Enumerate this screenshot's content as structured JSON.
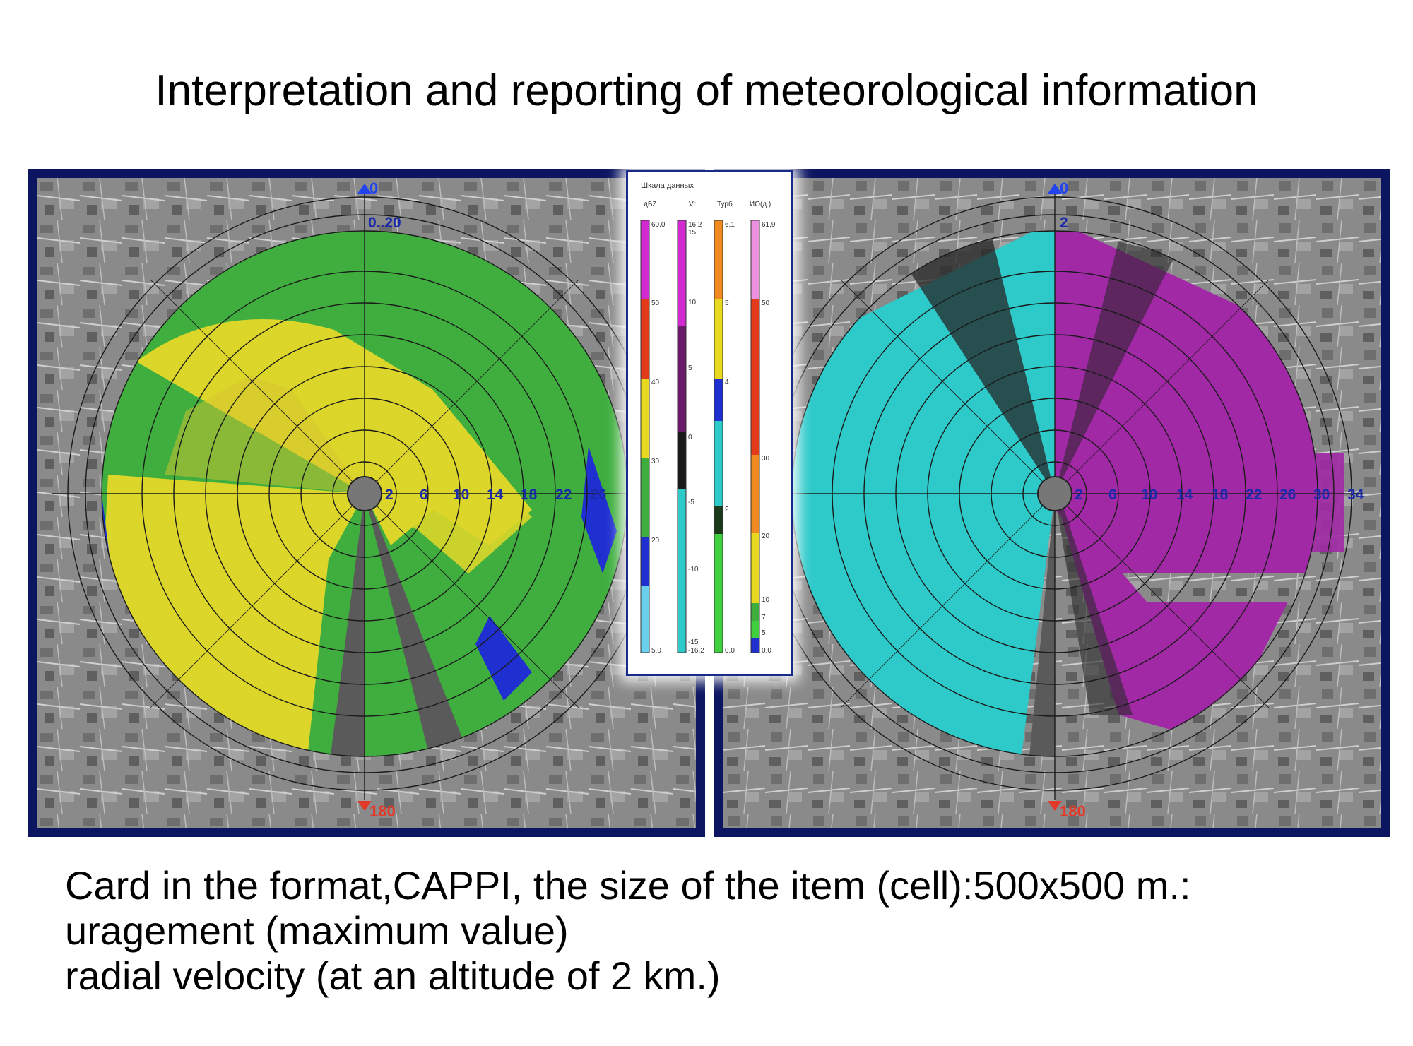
{
  "title": "Interpretation and reporting of meteorological information",
  "caption": {
    "line1": "Card in the format,CAPPI, the size of the item (cell):500x500 m.:",
    "line2": "uragement (maximum value)",
    "line3": "radial velocity (at an altitude of 2 km.)"
  },
  "left_panel": {
    "top_azimuth": "0",
    "bottom_azimuth": "180",
    "height_label": "0..20",
    "range_labels": [
      "2",
      "6",
      "10",
      "14",
      "18",
      "22",
      "26"
    ]
  },
  "right_panel": {
    "top_azimuth": "0",
    "bottom_azimuth": "180",
    "height_label": "2",
    "range_labels": [
      "2",
      "6",
      "10",
      "14",
      "18",
      "22",
      "26",
      "30",
      "34"
    ]
  },
  "legend": {
    "title": "Шкала данных",
    "columns": [
      {
        "header": "дБZ",
        "ticks": [
          "60,0",
          "50",
          "40",
          "30",
          "20",
          "5,0"
        ]
      },
      {
        "header": "Vr",
        "ticks": [
          "16,2",
          "15",
          "10",
          "5",
          "0",
          "-5",
          "-10",
          "-15",
          "-16,2"
        ]
      },
      {
        "header": "Турб.",
        "ticks": [
          "6,1",
          "5",
          "4",
          "2",
          "0,0"
        ]
      },
      {
        "header": "ИО(д.)",
        "ticks": [
          "61,9",
          "50",
          "30",
          "20",
          "10",
          "7",
          "5",
          "0,0"
        ]
      }
    ]
  },
  "colors": {
    "panel_border": "#0b1560",
    "reflectivity_yellow": "#dcd62a",
    "reflectivity_green": "#3fae3f",
    "reflectivity_blue": "#1f2fd0",
    "velocity_cyan": "#2ec9c9",
    "velocity_magenta": "#a229a6",
    "range_label": "#1a2aa8",
    "azimuth_top": "#2244ee",
    "azimuth_bottom": "#e23a2a"
  }
}
